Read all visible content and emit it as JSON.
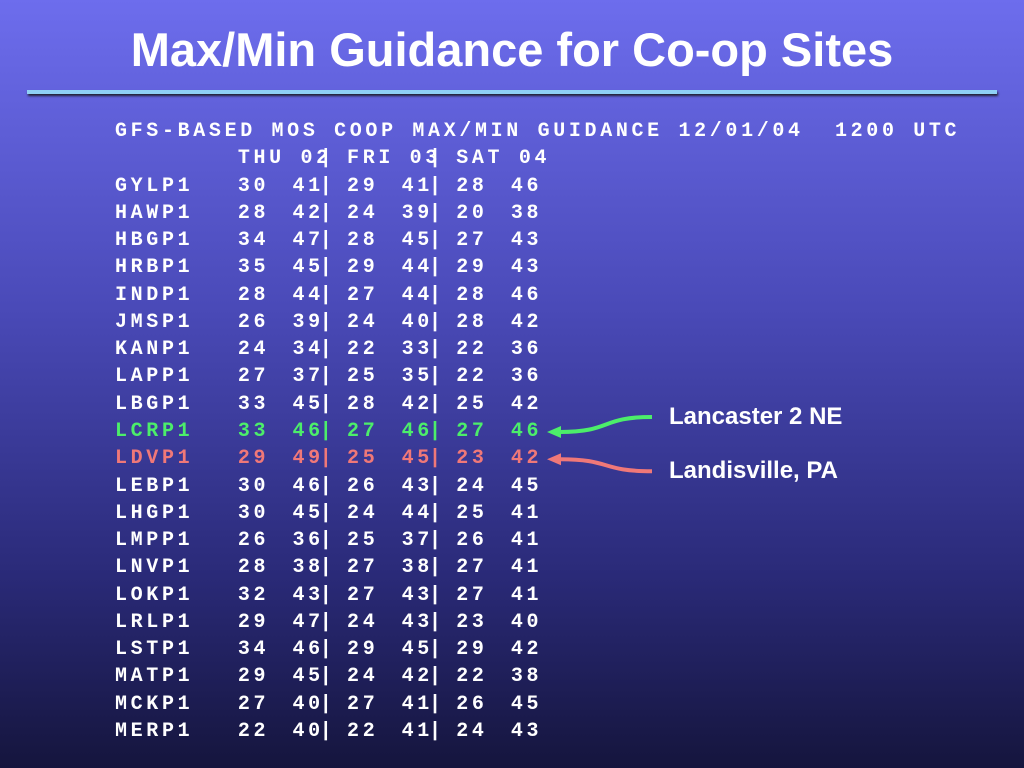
{
  "title": "Max/Min Guidance for Co-op Sites",
  "bulletin": {
    "header": "GFS-BASED MOS COOP MAX/MIN GUIDANCE 12/01/04  1200 UTC",
    "days": [
      "THU 02",
      "FRI 03",
      "SAT 04"
    ],
    "separator": "|",
    "rows": [
      {
        "station": "GYLP1",
        "values": [
          30,
          41,
          29,
          41,
          28,
          46
        ]
      },
      {
        "station": "HAWP1",
        "values": [
          28,
          42,
          24,
          39,
          20,
          38
        ]
      },
      {
        "station": "HBGP1",
        "values": [
          34,
          47,
          28,
          45,
          27,
          43
        ]
      },
      {
        "station": "HRBP1",
        "values": [
          35,
          45,
          29,
          44,
          29,
          43
        ]
      },
      {
        "station": "INDP1",
        "values": [
          28,
          44,
          27,
          44,
          28,
          46
        ]
      },
      {
        "station": "JMSP1",
        "values": [
          26,
          39,
          24,
          40,
          28,
          42
        ]
      },
      {
        "station": "KANP1",
        "values": [
          24,
          34,
          22,
          33,
          22,
          36
        ]
      },
      {
        "station": "LAPP1",
        "values": [
          27,
          37,
          25,
          35,
          22,
          36
        ]
      },
      {
        "station": "LBGP1",
        "values": [
          33,
          45,
          28,
          42,
          25,
          42
        ]
      },
      {
        "station": "LCRP1",
        "values": [
          33,
          46,
          27,
          46,
          27,
          46
        ],
        "color": "#4cee6a",
        "note": "Lancaster 2 NE"
      },
      {
        "station": "LDVP1",
        "values": [
          29,
          49,
          25,
          45,
          23,
          42
        ],
        "color": "#f07878",
        "note": "Landisville, PA"
      },
      {
        "station": "LEBP1",
        "values": [
          30,
          46,
          26,
          43,
          24,
          45
        ]
      },
      {
        "station": "LHGP1",
        "values": [
          30,
          45,
          24,
          44,
          25,
          41
        ]
      },
      {
        "station": "LMPP1",
        "values": [
          26,
          36,
          25,
          37,
          26,
          41
        ]
      },
      {
        "station": "LNVP1",
        "values": [
          28,
          38,
          27,
          38,
          27,
          41
        ]
      },
      {
        "station": "LOKP1",
        "values": [
          32,
          43,
          27,
          43,
          27,
          41
        ]
      },
      {
        "station": "LRLP1",
        "values": [
          29,
          47,
          24,
          43,
          23,
          40
        ]
      },
      {
        "station": "LSTP1",
        "values": [
          34,
          46,
          29,
          45,
          29,
          42
        ]
      },
      {
        "station": "MATP1",
        "values": [
          29,
          45,
          24,
          42,
          22,
          38
        ]
      },
      {
        "station": "MCKP1",
        "values": [
          27,
          40,
          27,
          41,
          26,
          45
        ]
      },
      {
        "station": "MERP1",
        "values": [
          22,
          40,
          22,
          41,
          24,
          43
        ]
      }
    ]
  }
}
